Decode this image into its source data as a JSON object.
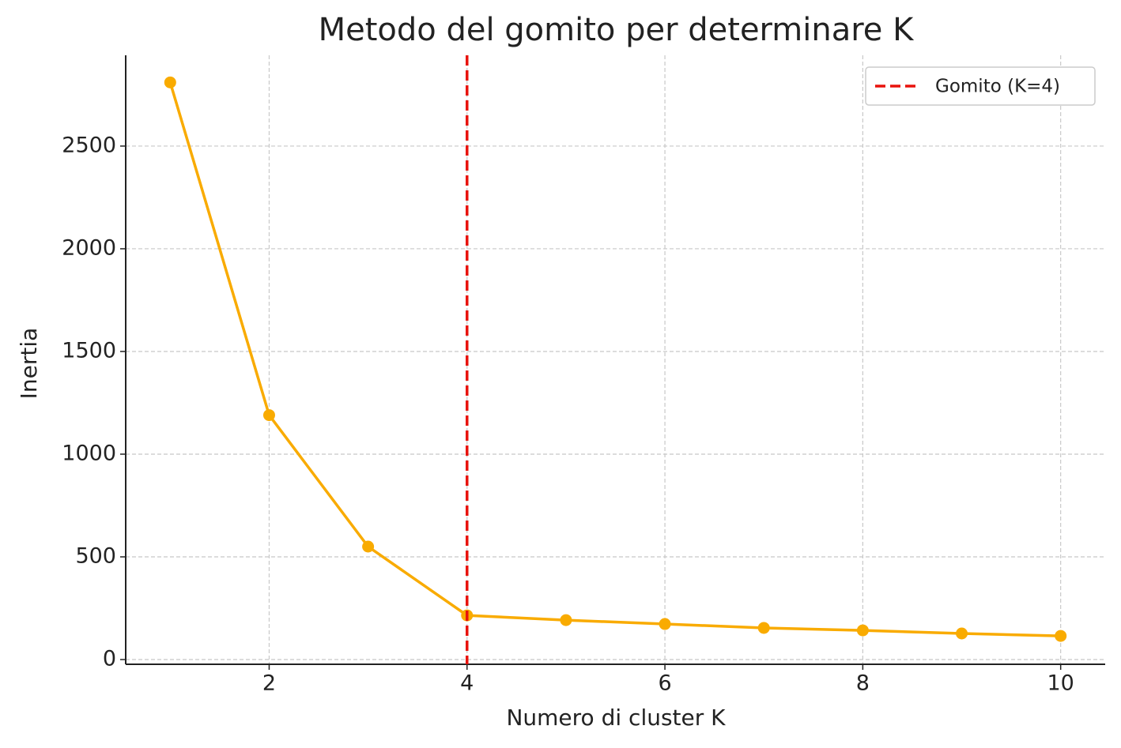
{
  "chart_data": {
    "type": "line",
    "title": "Metodo del gomito per determinare K",
    "xlabel": "Numero di cluster K",
    "ylabel": "Inertia",
    "x": [
      1,
      2,
      3,
      4,
      5,
      6,
      7,
      8,
      9,
      10
    ],
    "values": [
      2810,
      1190,
      550,
      215,
      192,
      173,
      154,
      142,
      127,
      115
    ],
    "color": "#f9ab00",
    "xlim": [
      0.55,
      10.45
    ],
    "ylim": [
      -23,
      2942
    ],
    "xticks": [
      2,
      4,
      6,
      8,
      10
    ],
    "yticks": [
      0,
      500,
      1000,
      1500,
      2000,
      2500
    ],
    "grid": true,
    "vline": {
      "x": 4,
      "label": "Gomito (K=4)",
      "color": "#e8120c"
    },
    "legend": "upper right"
  }
}
